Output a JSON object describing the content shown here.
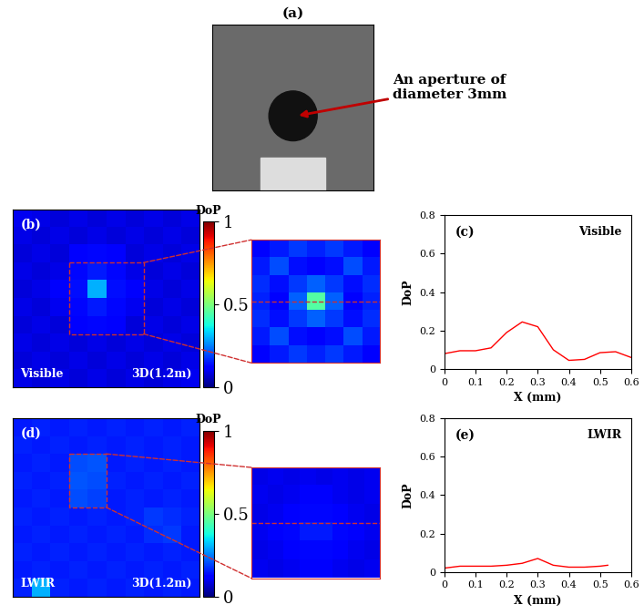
{
  "chart_data": [
    {
      "type": "image",
      "title": "(a)",
      "annotation": "An aperture of\ndiameter 3mm"
    },
    {
      "type": "heatmap",
      "title": "(b)",
      "annotations": [
        "Visible",
        "3D(1.2m)"
      ],
      "tick_labels": false,
      "colorbar_label": "DoP",
      "colorbar_range": [
        0,
        1
      ],
      "colorbar_ticks": [
        0,
        0.5,
        1
      ],
      "cells": [
        [
          0.1,
          0.09,
          0.08,
          0.09,
          0.08,
          0.09,
          0.08,
          0.09,
          0.08,
          0.09
        ],
        [
          0.09,
          0.08,
          0.09,
          0.08,
          0.09,
          0.08,
          0.09,
          0.08,
          0.09,
          0.08
        ],
        [
          0.08,
          0.09,
          0.08,
          0.12,
          0.13,
          0.12,
          0.08,
          0.09,
          0.08,
          0.09
        ],
        [
          0.09,
          0.08,
          0.09,
          0.13,
          0.15,
          0.13,
          0.09,
          0.08,
          0.09,
          0.08
        ],
        [
          0.08,
          0.09,
          0.11,
          0.14,
          0.3,
          0.14,
          0.11,
          0.09,
          0.08,
          0.09
        ],
        [
          0.09,
          0.08,
          0.1,
          0.13,
          0.15,
          0.13,
          0.1,
          0.08,
          0.09,
          0.08
        ],
        [
          0.08,
          0.09,
          0.08,
          0.12,
          0.13,
          0.12,
          0.08,
          0.09,
          0.08,
          0.09
        ],
        [
          0.09,
          0.08,
          0.09,
          0.08,
          0.09,
          0.08,
          0.09,
          0.08,
          0.09,
          0.08
        ],
        [
          0.08,
          0.09,
          0.08,
          0.09,
          0.08,
          0.09,
          0.08,
          0.09,
          0.08,
          0.09
        ],
        [
          0.09,
          0.08,
          0.09,
          0.08,
          0.09,
          0.08,
          0.09,
          0.08,
          0.09,
          0.1
        ]
      ],
      "inset_cells": [
        [
          0.12,
          0.15,
          0.18,
          0.16,
          0.18,
          0.15,
          0.12
        ],
        [
          0.15,
          0.2,
          0.14,
          0.12,
          0.14,
          0.2,
          0.15
        ],
        [
          0.17,
          0.14,
          0.18,
          0.22,
          0.18,
          0.14,
          0.17
        ],
        [
          0.16,
          0.12,
          0.22,
          0.45,
          0.22,
          0.12,
          0.16
        ],
        [
          0.17,
          0.14,
          0.18,
          0.22,
          0.18,
          0.14,
          0.17
        ],
        [
          0.15,
          0.2,
          0.14,
          0.12,
          0.14,
          0.2,
          0.15
        ],
        [
          0.12,
          0.15,
          0.18,
          0.16,
          0.18,
          0.15,
          0.12
        ]
      ]
    },
    {
      "type": "line",
      "title": "(c)",
      "annotation": "Visible",
      "x_label": "X (mm)",
      "y_label": "DoP",
      "color": "#ff0000",
      "x": [
        0,
        0.05,
        0.1,
        0.15,
        0.2,
        0.25,
        0.3,
        0.35,
        0.4,
        0.45,
        0.5,
        0.55,
        0.6
      ],
      "values": [
        0.08,
        0.095,
        0.095,
        0.11,
        0.19,
        0.245,
        0.22,
        0.1,
        0.045,
        0.05,
        0.085,
        0.09,
        0.06
      ],
      "xlim": [
        0,
        0.6
      ],
      "ylim": [
        0,
        0.8
      ],
      "xticks": [
        0,
        0.1,
        0.2,
        0.3,
        0.4,
        0.5,
        0.6
      ],
      "yticks": [
        0,
        0.2,
        0.4,
        0.6,
        0.8
      ]
    },
    {
      "type": "heatmap",
      "title": "(d)",
      "annotations": [
        "LWIR",
        "3D(1.2m)"
      ],
      "tick_labels": false,
      "colorbar_label": "DoP",
      "colorbar_range": [
        0,
        1
      ],
      "colorbar_ticks": [
        0,
        0.5,
        1
      ],
      "cells": [
        [
          0.15,
          0.16,
          0.15,
          0.16,
          0.15,
          0.16,
          0.15,
          0.16,
          0.15,
          0.16
        ],
        [
          0.16,
          0.15,
          0.16,
          0.15,
          0.16,
          0.15,
          0.16,
          0.15,
          0.16,
          0.15
        ],
        [
          0.15,
          0.16,
          0.15,
          0.2,
          0.21,
          0.15,
          0.16,
          0.15,
          0.16,
          0.15
        ],
        [
          0.16,
          0.15,
          0.16,
          0.21,
          0.2,
          0.16,
          0.15,
          0.16,
          0.15,
          0.16
        ],
        [
          0.15,
          0.16,
          0.15,
          0.2,
          0.19,
          0.15,
          0.16,
          0.15,
          0.16,
          0.15
        ],
        [
          0.16,
          0.15,
          0.16,
          0.15,
          0.16,
          0.15,
          0.16,
          0.18,
          0.17,
          0.16
        ],
        [
          0.15,
          0.16,
          0.15,
          0.16,
          0.15,
          0.16,
          0.15,
          0.17,
          0.18,
          0.15
        ],
        [
          0.16,
          0.15,
          0.16,
          0.15,
          0.16,
          0.15,
          0.16,
          0.15,
          0.16,
          0.15
        ],
        [
          0.15,
          0.16,
          0.15,
          0.16,
          0.15,
          0.16,
          0.15,
          0.16,
          0.15,
          0.16
        ],
        [
          0.16,
          0.3,
          0.16,
          0.15,
          0.16,
          0.15,
          0.16,
          0.15,
          0.16,
          0.15
        ]
      ],
      "inset_cells": [
        [
          0.09,
          0.1,
          0.09,
          0.1,
          0.09,
          0.1,
          0.09,
          0.1
        ],
        [
          0.1,
          0.09,
          0.1,
          0.11,
          0.11,
          0.1,
          0.09,
          0.1
        ],
        [
          0.09,
          0.1,
          0.12,
          0.13,
          0.13,
          0.12,
          0.1,
          0.09
        ],
        [
          0.1,
          0.11,
          0.13,
          0.15,
          0.15,
          0.13,
          0.11,
          0.1
        ],
        [
          0.09,
          0.1,
          0.12,
          0.13,
          0.13,
          0.12,
          0.1,
          0.09
        ],
        [
          0.1,
          0.09,
          0.1,
          0.11,
          0.11,
          0.1,
          0.09,
          0.1
        ]
      ]
    },
    {
      "type": "line",
      "title": "(e)",
      "annotation": "LWIR",
      "x_label": "X (mm)",
      "y_label": "DoP",
      "color": "#ff0000",
      "x": [
        0,
        0.05,
        0.1,
        0.15,
        0.2,
        0.25,
        0.3,
        0.35,
        0.4,
        0.45,
        0.5,
        0.525
      ],
      "values": [
        0.02,
        0.03,
        0.03,
        0.03,
        0.035,
        0.045,
        0.07,
        0.035,
        0.025,
        0.025,
        0.03,
        0.035
      ],
      "xlim": [
        0,
        0.6
      ],
      "ylim": [
        0,
        0.8
      ],
      "xticks": [
        0,
        0.1,
        0.2,
        0.3,
        0.4,
        0.5,
        0.6
      ],
      "yticks": [
        0,
        0.2,
        0.4,
        0.6,
        0.8
      ]
    }
  ]
}
